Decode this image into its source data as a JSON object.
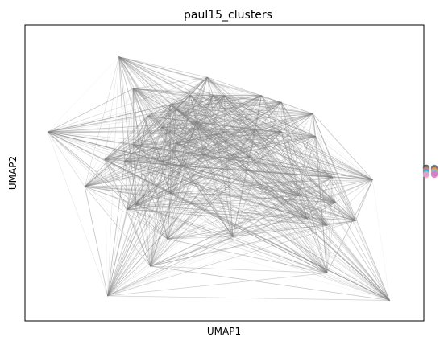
{
  "chart_data": {
    "type": "scatter",
    "title": "paul15_clusters",
    "xlabel": "UMAP1",
    "ylabel": "UMAP2",
    "grid": false,
    "ticks": "none",
    "legend_position": "right",
    "edge_color": "#808080",
    "nodes": [
      {
        "id": 0,
        "x": 1.3,
        "y": 8.6
      },
      {
        "id": 1,
        "x": 4.4,
        "y": 7.7
      },
      {
        "id": 2,
        "x": 1.8,
        "y": 7.2
      },
      {
        "id": 3,
        "x": 3.8,
        "y": 6.9
      },
      {
        "id": 4,
        "x": 4.6,
        "y": 6.9
      },
      {
        "id": 5,
        "x": 5.0,
        "y": 6.9
      },
      {
        "id": 6,
        "x": 6.3,
        "y": 6.9
      },
      {
        "id": 7,
        "x": 3.1,
        "y": 6.5
      },
      {
        "id": 8,
        "x": 7.0,
        "y": 6.6
      },
      {
        "id": 9,
        "x": 3.3,
        "y": 6.3
      },
      {
        "id": 10,
        "x": 8.1,
        "y": 6.1
      },
      {
        "id": 11,
        "x": 2.3,
        "y": 6.0
      },
      {
        "id": 12,
        "x": 4.0,
        "y": 5.7
      },
      {
        "id": 13,
        "x": 2.8,
        "y": 5.5
      },
      {
        "id": 14,
        "x": 6.1,
        "y": 5.4
      },
      {
        "id": 15,
        "x": -1.2,
        "y": 5.3
      },
      {
        "id": 16,
        "x": 5.0,
        "y": 5.3
      },
      {
        "id": 17,
        "x": 7.0,
        "y": 5.3
      },
      {
        "id": 18,
        "x": 8.2,
        "y": 5.1
      },
      {
        "id": 19,
        "x": 3.3,
        "y": 4.8
      },
      {
        "id": 20,
        "x": 1.8,
        "y": 4.7
      },
      {
        "id": 21,
        "x": 4.3,
        "y": 4.3
      },
      {
        "id": 22,
        "x": 0.8,
        "y": 4.1
      },
      {
        "id": 23,
        "x": 2.8,
        "y": 4.0
      },
      {
        "id": 24,
        "x": 1.5,
        "y": 4.0
      },
      {
        "id": 25,
        "x": 5.9,
        "y": 4.2
      },
      {
        "id": 26,
        "x": 3.5,
        "y": 3.8
      },
      {
        "id": 27,
        "x": 8.8,
        "y": 3.3
      },
      {
        "id": 28,
        "x": 10.2,
        "y": 3.2
      },
      {
        "id": 29,
        "x": 0.1,
        "y": 2.9
      },
      {
        "id": 30,
        "x": 3.1,
        "y": 2.6
      },
      {
        "id": 31,
        "x": 7.6,
        "y": 2.5
      },
      {
        "id": 32,
        "x": 8.9,
        "y": 2.2
      },
      {
        "id": 33,
        "x": 1.9,
        "y": 2.1
      },
      {
        "id": 34,
        "x": 1.6,
        "y": 1.9
      },
      {
        "id": 35,
        "x": 7.9,
        "y": 1.5
      },
      {
        "id": 36,
        "x": 9.6,
        "y": 1.4
      },
      {
        "id": 37,
        "x": 8.6,
        "y": 1.2
      },
      {
        "id": 38,
        "x": 3.0,
        "y": 0.6
      },
      {
        "id": 39,
        "x": 5.3,
        "y": 0.7
      },
      {
        "id": 40,
        "x": 2.4,
        "y": -0.6
      },
      {
        "id": 41,
        "x": 8.6,
        "y": -0.9
      },
      {
        "id": 42,
        "x": 0.9,
        "y": -1.9
      },
      {
        "id": 43,
        "x": 10.8,
        "y": -2.1
      }
    ],
    "legend_markers": [
      "#1f4f4a",
      "#2a9d8f",
      "#c45a5a",
      "#d62f8a",
      "#a5a08a",
      "#bcbd22",
      "#9a7bb5",
      "#d4a0a0",
      "#17becf",
      "#7fb8d4",
      "#ff9ec7",
      "#e377c2"
    ],
    "xlim": [
      -2.0,
      12.0
    ],
    "ylim": [
      -3.0,
      10.0
    ]
  }
}
